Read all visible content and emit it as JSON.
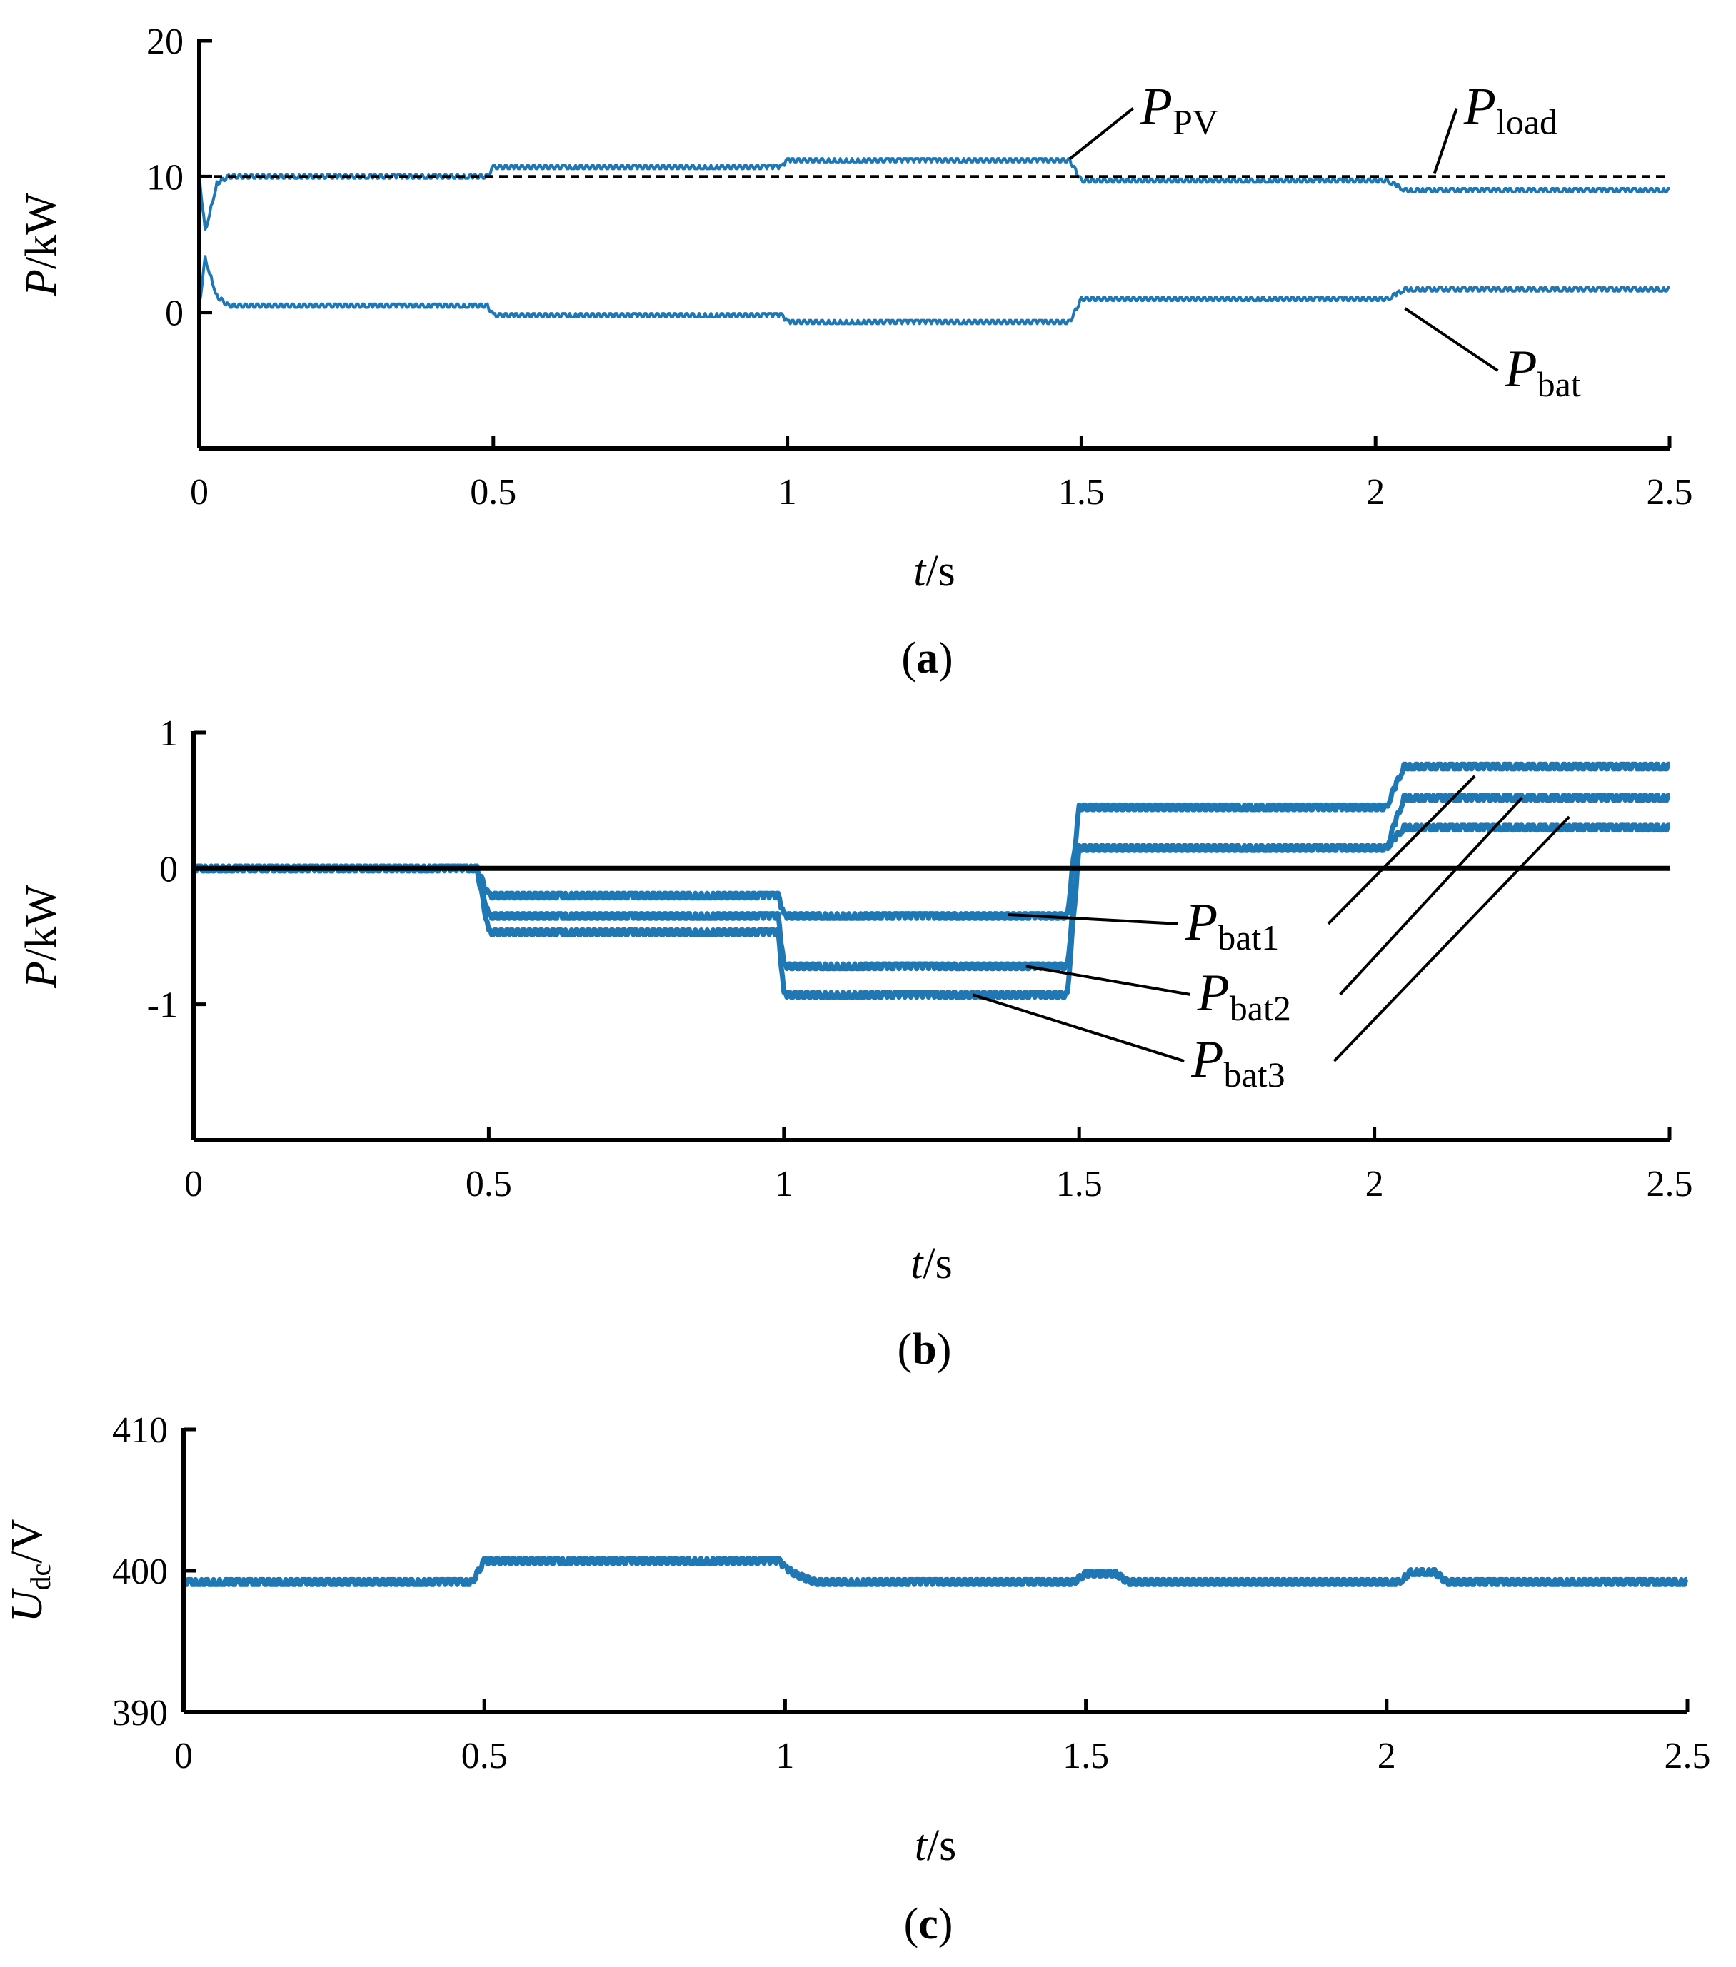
{
  "chart_data": [
    {
      "panel_label": "(a)",
      "panel_letter": "a",
      "type": "line",
      "xlabel": {
        "var": "t",
        "unit": "s"
      },
      "ylabel": {
        "var": "P",
        "unit": "kW"
      },
      "xlim": [
        0,
        2.5
      ],
      "ylim": [
        -10,
        20
      ],
      "xticks": [
        0,
        0.5,
        1,
        1.5,
        2,
        2.5
      ],
      "xtick_labels": [
        "0",
        "0.5",
        "1",
        "1.5",
        "2",
        "2.5"
      ],
      "yticks": [
        0,
        10,
        20
      ],
      "ytick_labels": [
        "0",
        "10",
        "20"
      ],
      "grid": false,
      "series": [
        {
          "name": "P_PV",
          "main": "P",
          "sub": "PV",
          "color": "#1f77b4",
          "style": "solid",
          "ripple": 0.25,
          "x": [
            0,
            0.01,
            0.03,
            0.05,
            0.49,
            0.5,
            0.99,
            1.0,
            1.48,
            1.5,
            2.02,
            2.05,
            2.5
          ],
          "y": [
            10,
            6,
            9.5,
            10,
            10,
            10.7,
            10.7,
            11.2,
            11.2,
            9.7,
            9.7,
            9.0,
            9.0
          ]
        },
        {
          "name": "P_load",
          "main": "P",
          "sub": "load",
          "color": "#000000",
          "style": "dashed",
          "ripple": 0,
          "x": [
            0,
            2.5
          ],
          "y": [
            10,
            10
          ]
        },
        {
          "name": "P_bat",
          "main": "P",
          "sub": "bat",
          "color": "#1f77b4",
          "style": "solid",
          "ripple": 0.25,
          "x": [
            0,
            0.01,
            0.03,
            0.05,
            0.49,
            0.5,
            0.99,
            1.0,
            1.48,
            1.5,
            2.02,
            2.05,
            2.5
          ],
          "y": [
            0.5,
            4,
            1.2,
            0.5,
            0.5,
            -0.2,
            -0.2,
            -0.7,
            -0.7,
            1.0,
            1.0,
            1.7,
            1.7
          ]
        }
      ],
      "annotations": [
        {
          "main": "P",
          "sub": "PV",
          "target_x": 1.48,
          "target_y": 11.3,
          "text_x": 1.6,
          "text_y": 14.5
        },
        {
          "main": "P",
          "sub": "load",
          "target_x": 2.1,
          "target_y": 10.2,
          "text_x": 2.15,
          "text_y": 14.5
        },
        {
          "main": "P",
          "sub": "bat",
          "target_x": 2.05,
          "target_y": 0.3,
          "text_x": 2.22,
          "text_y": -4.8
        }
      ]
    },
    {
      "panel_label": "(b)",
      "panel_letter": "b",
      "type": "line",
      "xlabel": {
        "var": "t",
        "unit": "s"
      },
      "ylabel": {
        "var": "P",
        "unit": "kW"
      },
      "xlim": [
        0,
        2.5
      ],
      "ylim": [
        -2,
        1
      ],
      "xticks": [
        0,
        0.5,
        1,
        1.5,
        2,
        2.5
      ],
      "xtick_labels": [
        "0",
        "0.5",
        "1",
        "1.5",
        "2",
        "2.5"
      ],
      "yticks": [
        1,
        0,
        -1
      ],
      "ytick_labels": [
        "1",
        "0",
        "-1"
      ],
      "grid": false,
      "series": [
        {
          "name": "P_bat1",
          "main": "P",
          "sub": "bat1",
          "color": "#1f77b4",
          "style": "solid",
          "ripple": 0.035,
          "x": [
            0,
            0.48,
            0.5,
            0.99,
            1.0,
            1.48,
            1.5,
            2.02,
            2.05,
            2.5
          ],
          "y": [
            0,
            0,
            -0.2,
            -0.2,
            -0.35,
            -0.35,
            0.45,
            0.45,
            0.75,
            0.75
          ]
        },
        {
          "name": "P_bat2",
          "main": "P",
          "sub": "bat2",
          "color": "#1f77b4",
          "style": "solid",
          "ripple": 0.035,
          "x": [
            0,
            0.48,
            0.5,
            0.99,
            1.0,
            1.48,
            1.5,
            2.02,
            2.05,
            2.5
          ],
          "y": [
            0,
            0,
            -0.35,
            -0.35,
            -0.72,
            -0.72,
            0.15,
            0.15,
            0.52,
            0.52
          ]
        },
        {
          "name": "P_bat3",
          "main": "P",
          "sub": "bat3",
          "color": "#1f77b4",
          "style": "solid",
          "ripple": 0.035,
          "x": [
            0,
            0.48,
            0.5,
            0.99,
            1.0,
            1.48,
            1.5,
            2.02,
            2.05,
            2.5
          ],
          "y": [
            0,
            0,
            -0.47,
            -0.47,
            -0.93,
            -0.93,
            0.15,
            0.15,
            0.3,
            0.3
          ]
        },
        {
          "name": "zero",
          "color": "#000000",
          "style": "solid",
          "ripple": 0,
          "x": [
            0,
            2.5
          ],
          "y": [
            0,
            0
          ]
        }
      ],
      "annotations": [
        {
          "main": "P",
          "sub": "bat1",
          "target_x": 1.38,
          "target_y": -0.34,
          "text_x": 1.68,
          "text_y": -0.46,
          "target2_x": 2.17,
          "target2_y": 0.68
        },
        {
          "name": "P_bat2",
          "main": "P",
          "sub": "bat2",
          "target_x": 1.41,
          "target_y": -0.72,
          "text_x": 1.7,
          "text_y": -0.98,
          "target2_x": 2.25,
          "target2_y": 0.52
        },
        {
          "main": "P",
          "sub": "bat3",
          "target_x": 1.32,
          "target_y": -0.93,
          "text_x": 1.69,
          "text_y": -1.47,
          "target2_x": 2.33,
          "target2_y": 0.38
        }
      ]
    },
    {
      "panel_label": "(c)",
      "panel_letter": "c",
      "type": "line",
      "xlabel": {
        "var": "t",
        "unit": "s"
      },
      "ylabel": {
        "var": "U",
        "sub": "dc",
        "unit": "V"
      },
      "xlim": [
        0,
        2.5
      ],
      "ylim": [
        390,
        410
      ],
      "xticks": [
        0,
        0.5,
        1,
        1.5,
        2,
        2.5
      ],
      "xtick_labels": [
        "0",
        "0.5",
        "1",
        "1.5",
        "2",
        "2.5"
      ],
      "yticks": [
        410,
        400,
        390
      ],
      "ytick_labels": [
        "410",
        "400",
        "390"
      ],
      "grid": false,
      "series": [
        {
          "name": "U_dc",
          "color": "#1f77b4",
          "style": "solid",
          "ripple": 0.35,
          "x": [
            0,
            0.48,
            0.5,
            0.99,
            1.0,
            1.02,
            1.05,
            1.48,
            1.5,
            1.55,
            1.57,
            2.02,
            2.04,
            2.08,
            2.1,
            2.5
          ],
          "y": [
            399.2,
            399.2,
            400.7,
            400.7,
            400.2,
            399.7,
            399.2,
            399.2,
            399.8,
            399.8,
            399.2,
            399.2,
            399.9,
            399.9,
            399.2,
            399.2
          ]
        }
      ],
      "annotations": []
    }
  ]
}
